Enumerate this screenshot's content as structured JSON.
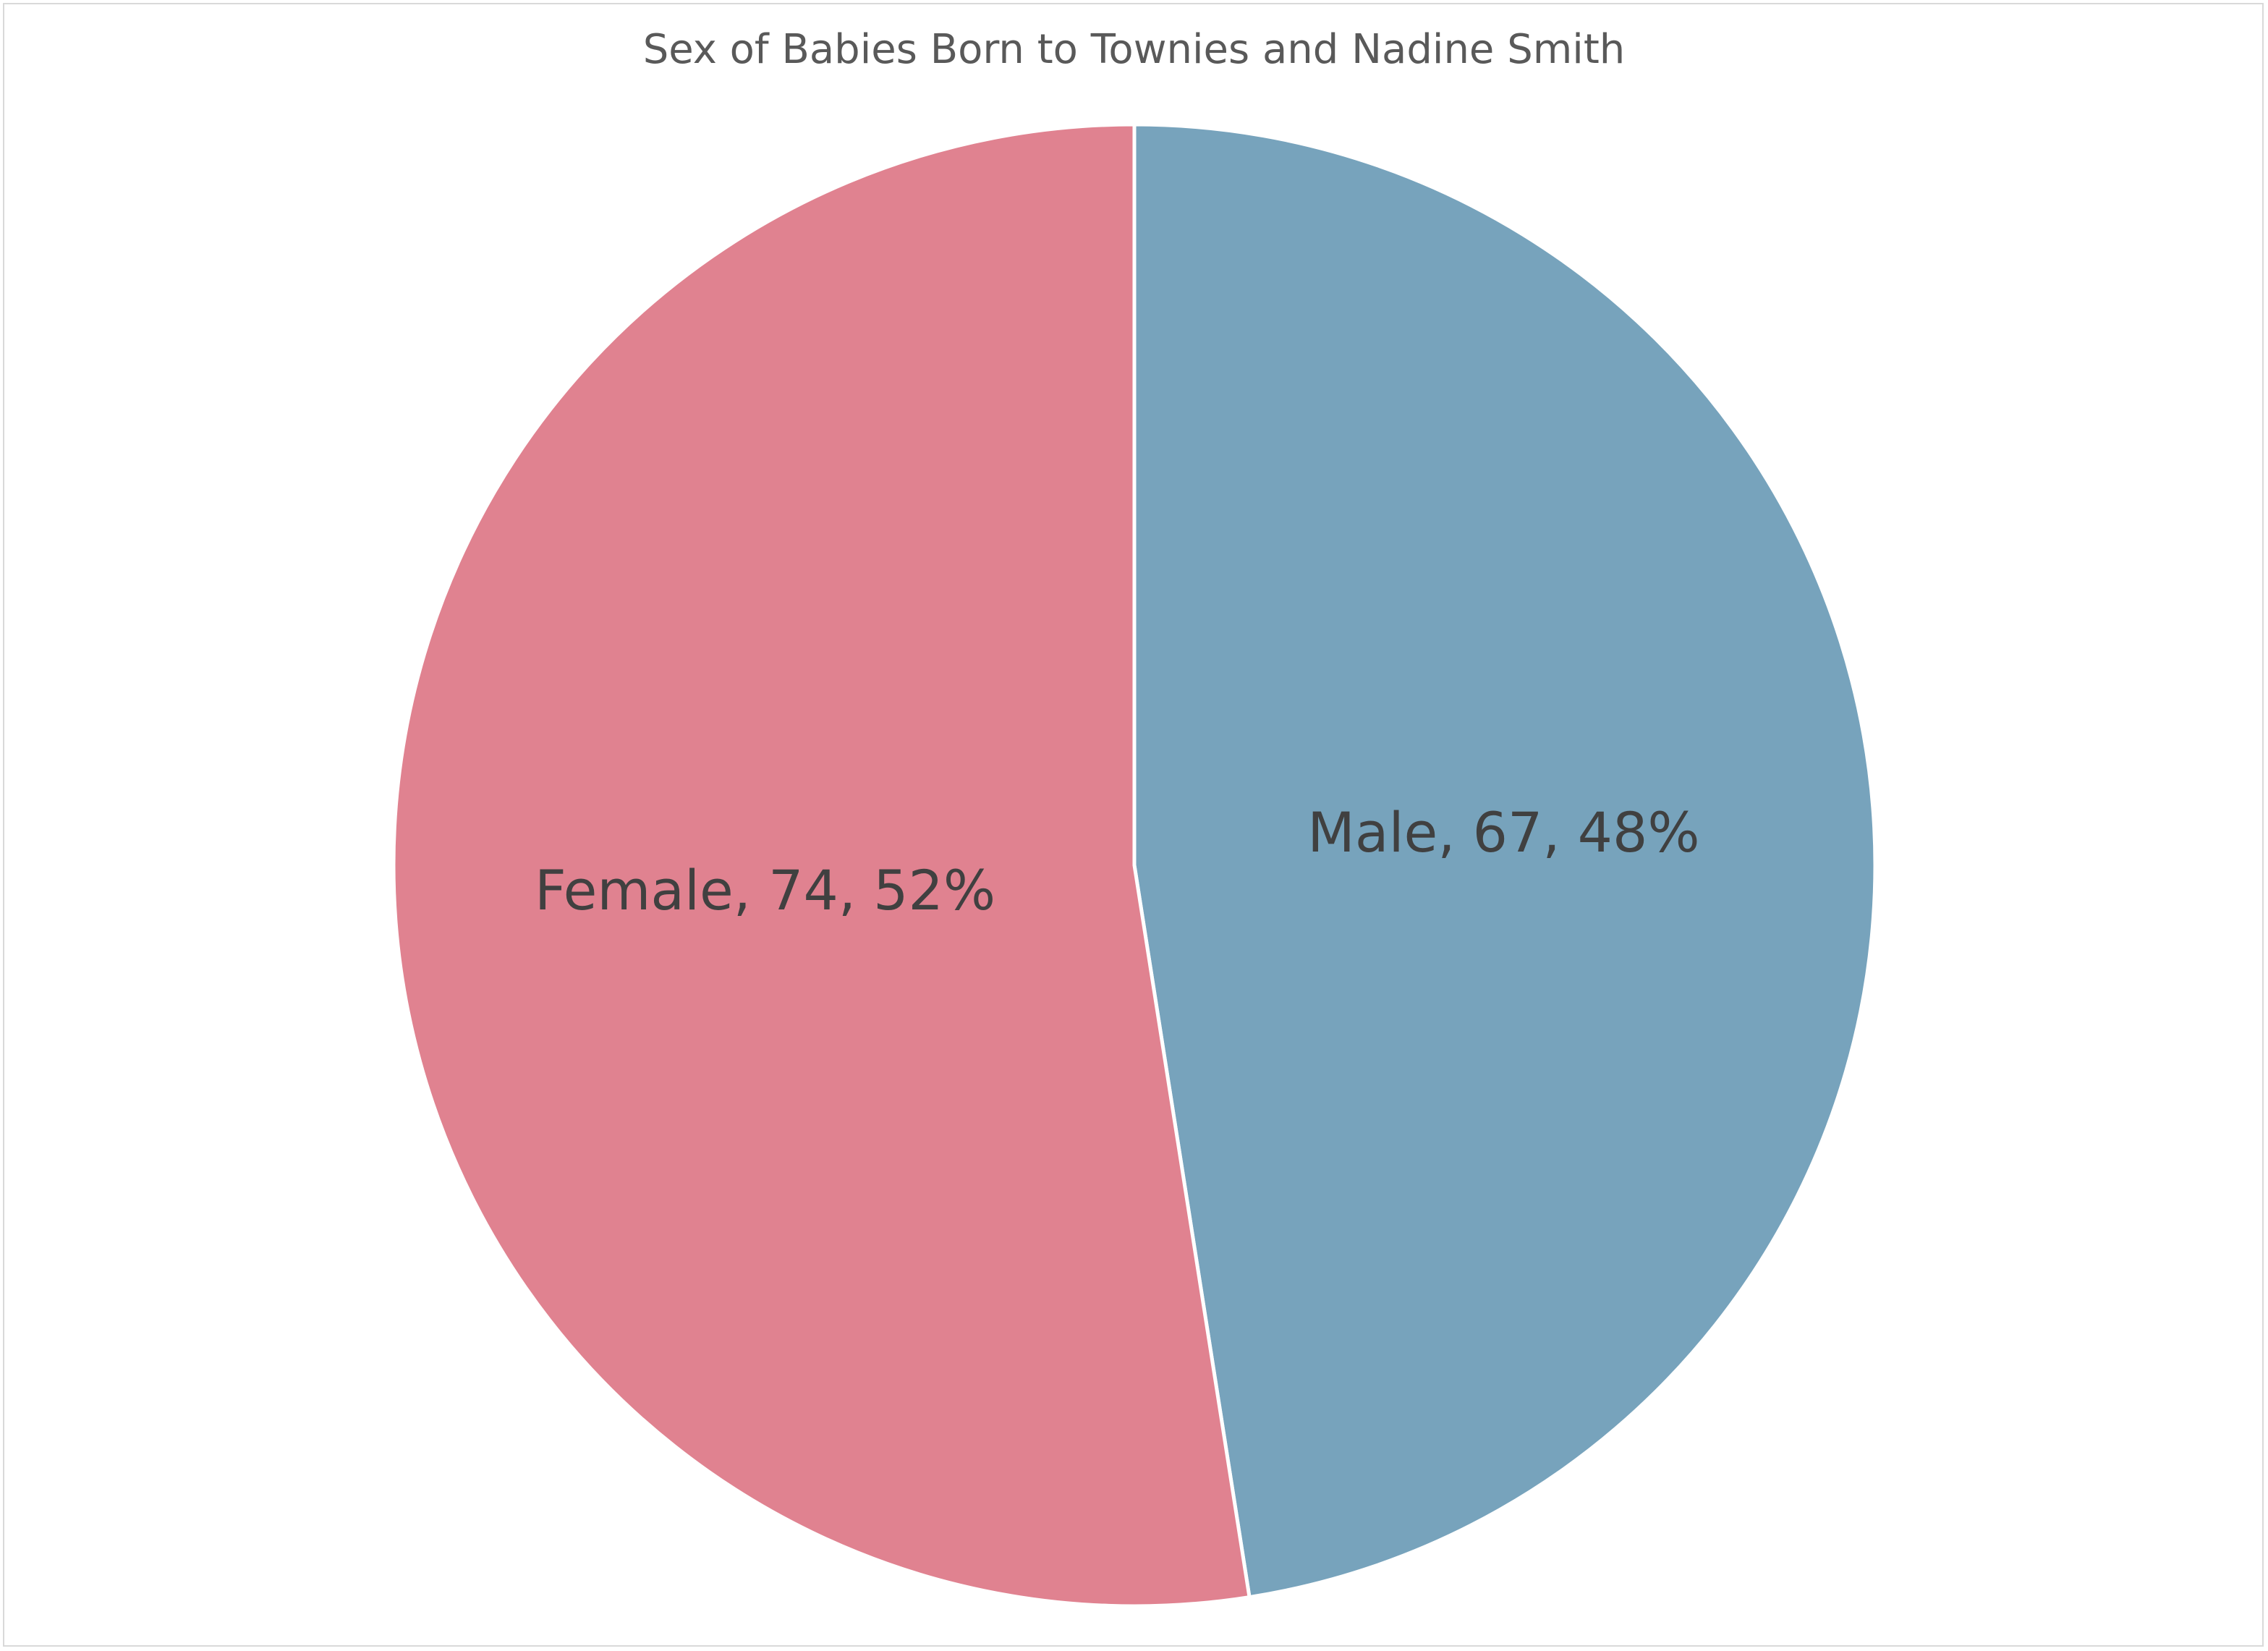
{
  "chart_data": {
    "type": "pie",
    "title": "Sex of Babies Born to Townies and Nadine Smith",
    "slices": [
      {
        "name": "Male",
        "value": 67,
        "percent": "48%",
        "label": "Male, 67, 48%",
        "color": "#77a3bc"
      },
      {
        "name": "Female",
        "value": 74,
        "percent": "52%",
        "label": "Female, 74, 52%",
        "color": "#e08290"
      }
    ],
    "start_angle_deg": 0,
    "direction": "clockwise",
    "slice_border_color": "#ffffff"
  }
}
